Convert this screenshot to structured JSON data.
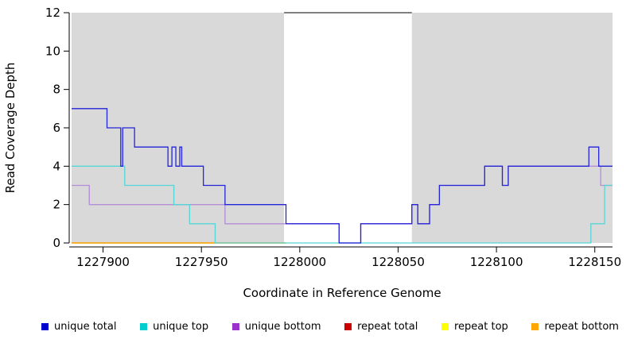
{
  "chart_data": {
    "type": "line",
    "step": true,
    "title": "",
    "xlabel": "Coordinate in Reference Genome",
    "ylabel": "Read Coverage Depth",
    "xlim": [
      1227884,
      1228159
    ],
    "ylim": [
      0,
      12
    ],
    "xticks": [
      1227900,
      1227950,
      1228000,
      1228050,
      1228100,
      1228150
    ],
    "yticks": [
      0,
      2,
      4,
      6,
      8,
      10,
      12
    ],
    "grid": false,
    "shade_color": "#D9D9D9",
    "shaded_regions": [
      {
        "x1": 1227884,
        "x2": 1227992
      },
      {
        "x1": 1228057,
        "x2": 1228159
      }
    ],
    "gap_top_line": {
      "x1": 1227992,
      "x2": 1228057,
      "y": 12
    },
    "series": [
      {
        "name": "repeat total",
        "color": "#CD0000",
        "xend": 1227993,
        "points": [
          [
            1227884,
            0
          ]
        ]
      },
      {
        "name": "repeat top",
        "color": "#FFFF00",
        "xend": 1227993,
        "points": [
          [
            1227884,
            0
          ]
        ]
      },
      {
        "name": "repeat bottom",
        "color": "#FFA500",
        "xend": 1227993,
        "points": [
          [
            1227884,
            0
          ]
        ]
      },
      {
        "name": "unique bottom",
        "color": "#B48CD8",
        "xend": 1228159,
        "points": [
          [
            1227884,
            3
          ],
          [
            1227893,
            2
          ],
          [
            1227962,
            1
          ],
          [
            1228020,
            0
          ],
          [
            1228031,
            1
          ],
          [
            1228057,
            2
          ],
          [
            1228060,
            1
          ],
          [
            1228066,
            2
          ],
          [
            1228071,
            3
          ],
          [
            1228094,
            4
          ],
          [
            1228103,
            3
          ],
          [
            1228106,
            4
          ],
          [
            1228153,
            3
          ]
        ]
      },
      {
        "name": "unique top",
        "color": "#55D6D6",
        "xend": 1228159,
        "points": [
          [
            1227884,
            4
          ],
          [
            1227911,
            3
          ],
          [
            1227936,
            2
          ],
          [
            1227944,
            1
          ],
          [
            1227957,
            0
          ],
          [
            1228148,
            1
          ],
          [
            1228155,
            3
          ]
        ]
      },
      {
        "name": "unique total",
        "color": "#2424D9",
        "xend": 1228159,
        "points": [
          [
            1227884,
            7
          ],
          [
            1227902,
            6
          ],
          [
            1227909,
            4
          ],
          [
            1227910,
            6
          ],
          [
            1227916,
            5
          ],
          [
            1227933,
            4
          ],
          [
            1227935,
            5
          ],
          [
            1227937,
            4
          ],
          [
            1227939,
            5
          ],
          [
            1227940,
            4
          ],
          [
            1227951,
            3
          ],
          [
            1227962,
            2
          ],
          [
            1227993,
            1
          ],
          [
            1228020,
            0
          ],
          [
            1228031,
            1
          ],
          [
            1228057,
            2
          ],
          [
            1228060,
            1
          ],
          [
            1228066,
            2
          ],
          [
            1228071,
            3
          ],
          [
            1228094,
            4
          ],
          [
            1228103,
            3
          ],
          [
            1228106,
            4
          ],
          [
            1228147,
            5
          ],
          [
            1228152,
            4
          ]
        ]
      }
    ]
  },
  "legend": {
    "items": [
      {
        "label": "unique total",
        "color": "#0000CD"
      },
      {
        "label": "unique top",
        "color": "#00CDCD"
      },
      {
        "label": "unique bottom",
        "color": "#9932CC"
      },
      {
        "label": "repeat total",
        "color": "#CD0000"
      },
      {
        "label": "repeat top",
        "color": "#FFFF00"
      },
      {
        "label": "repeat bottom",
        "color": "#FFA500"
      }
    ]
  }
}
